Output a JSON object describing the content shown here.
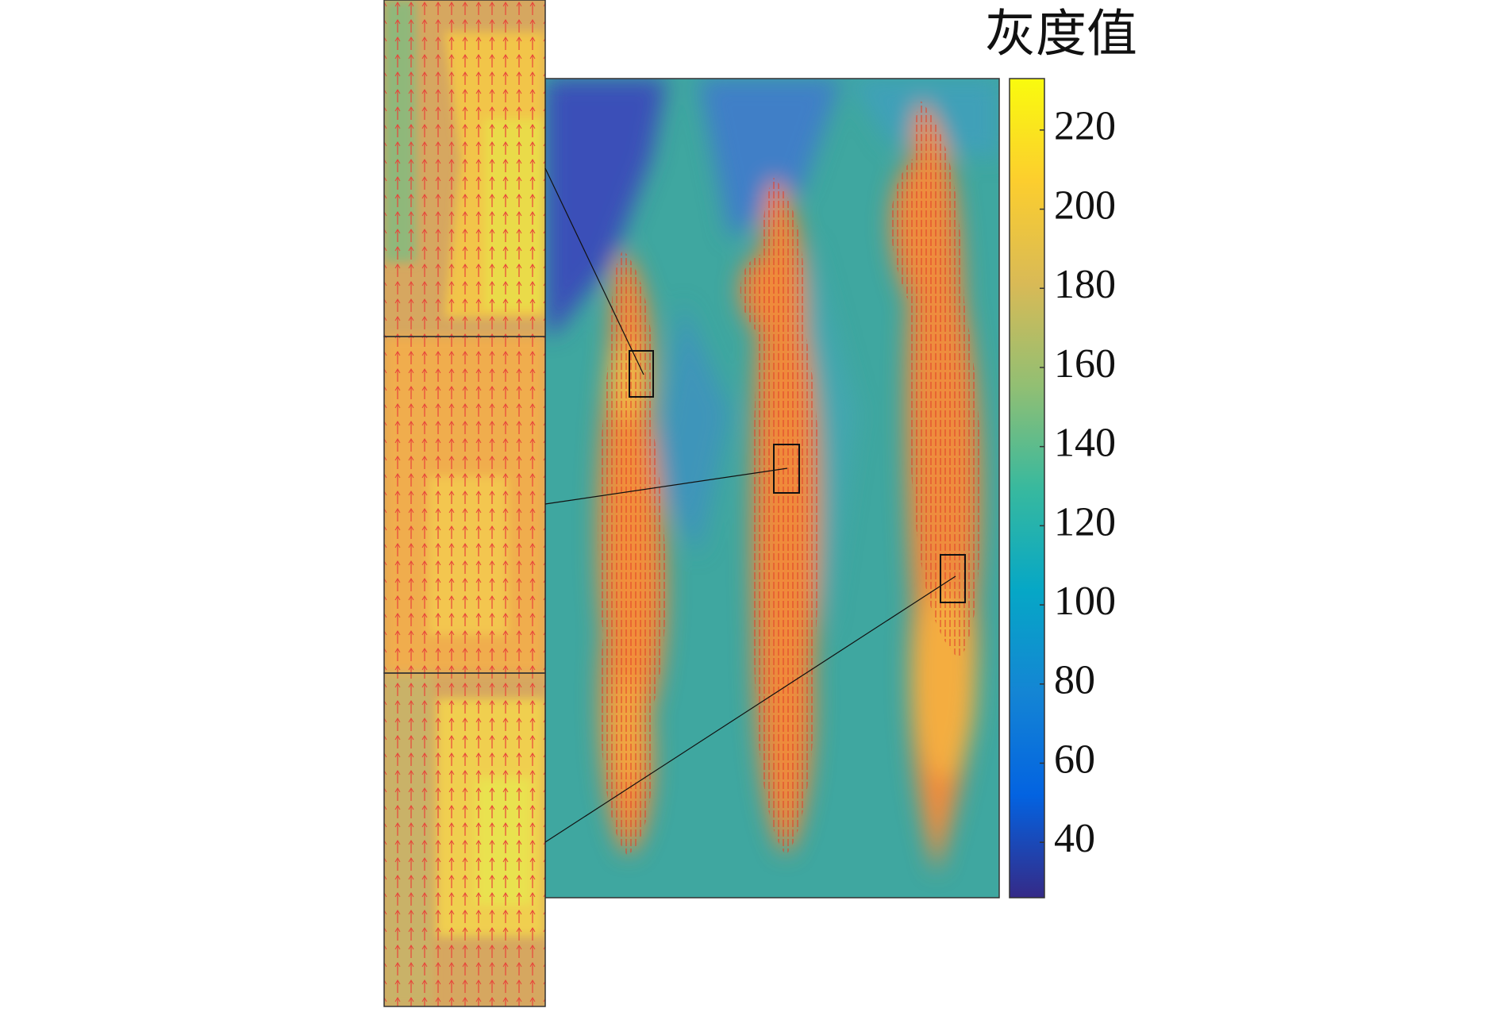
{
  "chart_data": {
    "type": "heatmap",
    "colorbar_label": "灰度值",
    "colormap": "parula",
    "clim": [
      26,
      233
    ],
    "cticks": [
      40,
      60,
      80,
      100,
      120,
      140,
      160,
      180,
      200,
      220
    ]
  }
}
